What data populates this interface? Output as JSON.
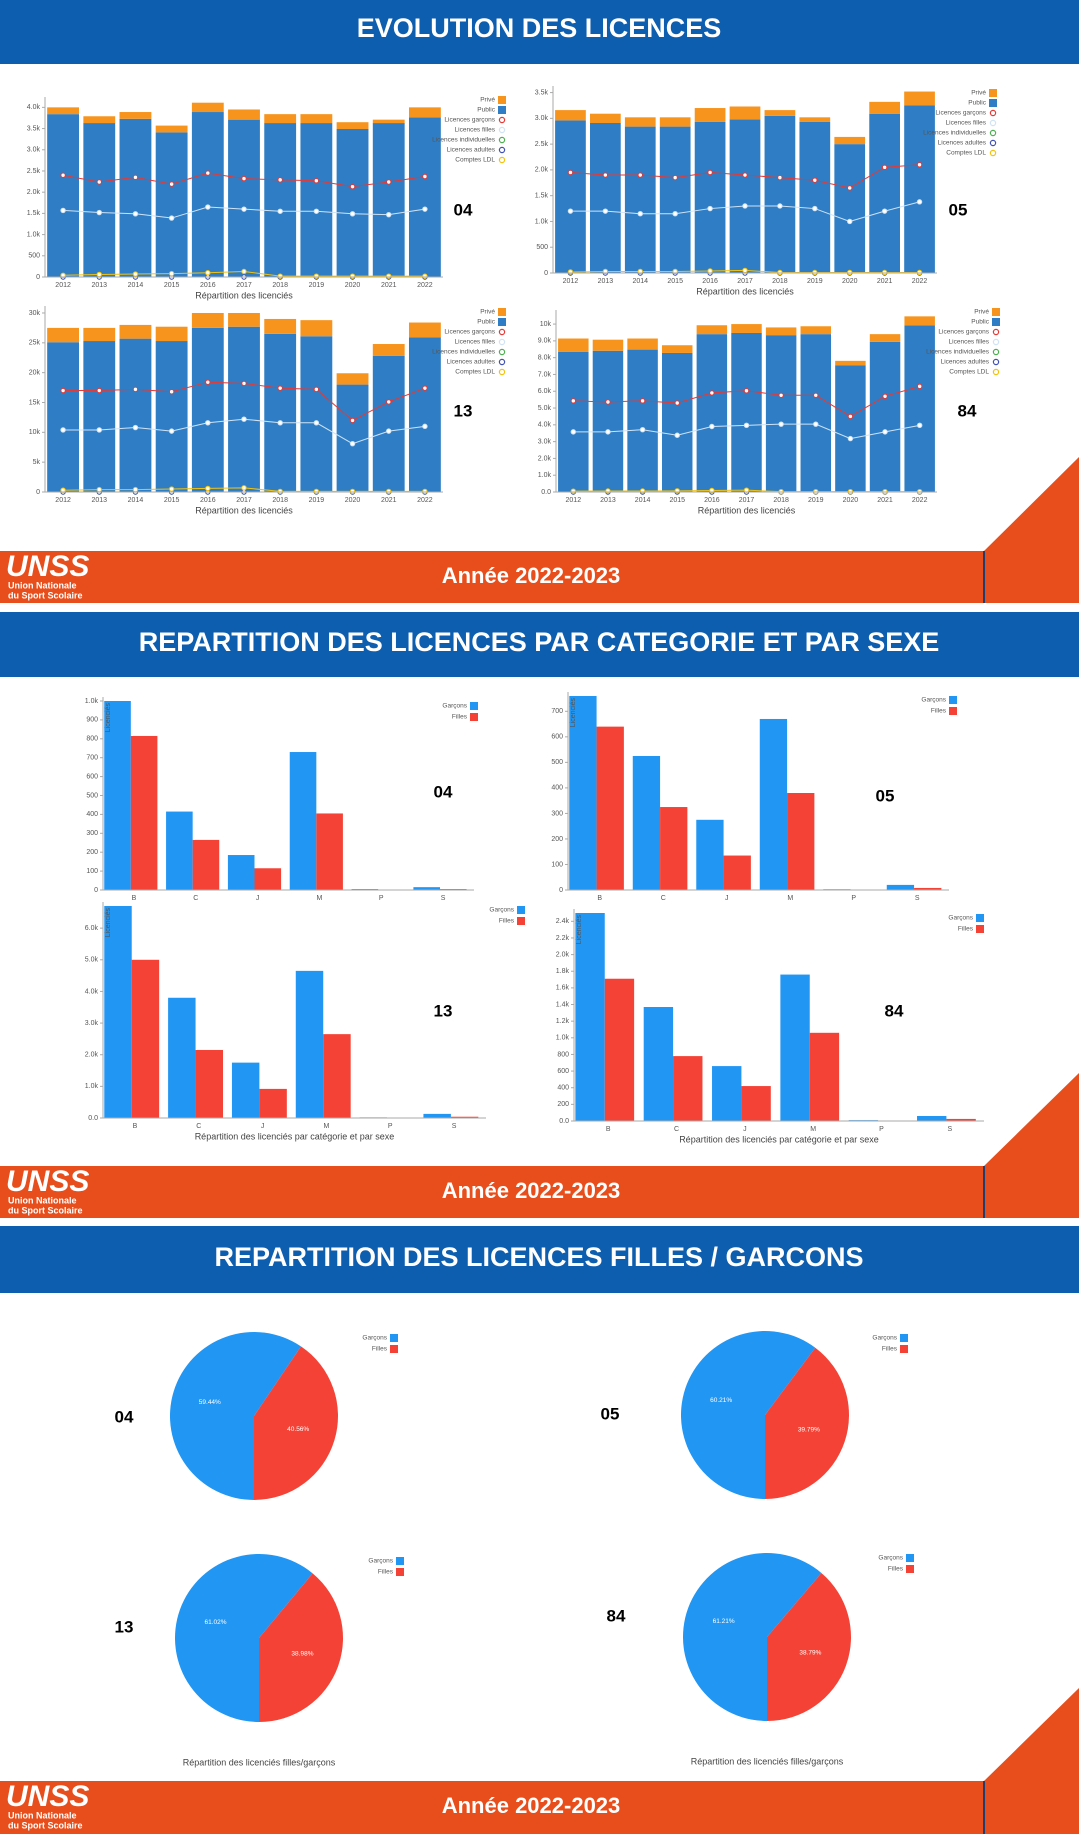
{
  "logo": {
    "name": "UNSS",
    "subtitle_lines": [
      "Union Nationale",
      "du Sport Scolaire"
    ]
  },
  "sections": [
    {
      "title": "EVOLUTION DES LICENCES",
      "footer": "Année 2022-2023"
    },
    {
      "title": "REPARTITION DES LICENCES PAR CATEGORIE ET PAR SEXE",
      "footer": "Année 2022-2023"
    },
    {
      "title": "REPARTITION DES LICENCES FILLES / GARCONS",
      "footer": "Année 2022-2023"
    }
  ],
  "chart_data": [
    {
      "type": "bar",
      "stacked": true,
      "label": "04",
      "x_label": "Répartition des licenciés",
      "categories": [
        "2012",
        "2013",
        "2014",
        "2015",
        "2016",
        "2017",
        "2018",
        "2019",
        "2020",
        "2021",
        "2022"
      ],
      "series": [
        {
          "name": "Privé",
          "color": "#f7941d",
          "values": [
            160,
            160,
            160,
            160,
            220,
            240,
            210,
            210,
            160,
            80,
            240
          ]
        },
        {
          "name": "Public",
          "color": "#2f7ec5",
          "values": [
            3840,
            3630,
            3730,
            3410,
            3890,
            3710,
            3630,
            3630,
            3490,
            3630,
            3760
          ]
        },
        {
          "name": "Licences garçons",
          "type": "line",
          "color": "#e53935",
          "values": [
            2400,
            2240,
            2350,
            2190,
            2450,
            2320,
            2290,
            2270,
            2130,
            2240,
            2370
          ]
        },
        {
          "name": "Licences filles",
          "type": "line",
          "color": "#cfe3f5",
          "values": [
            1570,
            1520,
            1490,
            1390,
            1650,
            1600,
            1550,
            1550,
            1490,
            1470,
            1600
          ]
        },
        {
          "name": "Licences individuelles",
          "type": "line",
          "color": "#4caf50",
          "values": [
            0,
            0,
            0,
            0,
            0,
            0,
            0,
            0,
            0,
            0,
            0
          ]
        },
        {
          "name": "Licences adultes",
          "type": "line",
          "color": "#3f51b5",
          "values": [
            0,
            0,
            0,
            0,
            0,
            0,
            0,
            0,
            0,
            0,
            0
          ]
        },
        {
          "name": "Comptes LDL",
          "type": "line",
          "color": "#f4c20d",
          "values": [
            40,
            60,
            70,
            80,
            100,
            130,
            20,
            20,
            20,
            20,
            20
          ]
        }
      ],
      "ylim": [
        0,
        4150
      ],
      "yticks": [
        0,
        500,
        {
          "value": 1000,
          "label": "1.0k"
        },
        {
          "value": 1500,
          "label": "1.5k"
        },
        {
          "value": 2000,
          "label": "2.0k"
        },
        {
          "value": 2500,
          "label": "2.5k"
        },
        {
          "value": 3000,
          "label": "3.0k"
        },
        {
          "value": 3500,
          "label": "3.5k"
        },
        {
          "value": 4000,
          "label": "4.0k"
        }
      ]
    },
    {
      "type": "bar",
      "stacked": true,
      "label": "05",
      "x_label": "Répartition des licenciés",
      "categories": [
        "2012",
        "2013",
        "2014",
        "2015",
        "2016",
        "2017",
        "2018",
        "2019",
        "2020",
        "2021",
        "2022"
      ],
      "series": [
        {
          "name": "Privé",
          "color": "#f7941d",
          "values": [
            200,
            180,
            180,
            180,
            270,
            250,
            110,
            90,
            140,
            230,
            270
          ]
        },
        {
          "name": "Public",
          "color": "#2f7ec5",
          "values": [
            2960,
            2910,
            2840,
            2840,
            2930,
            2980,
            3050,
            2930,
            2500,
            3090,
            3250
          ]
        },
        {
          "name": "Licences garçons",
          "type": "line",
          "color": "#e53935",
          "values": [
            1950,
            1900,
            1900,
            1850,
            1950,
            1900,
            1850,
            1800,
            1650,
            2050,
            2100
          ]
        },
        {
          "name": "Licences filles",
          "type": "line",
          "color": "#cfe3f5",
          "values": [
            1200,
            1200,
            1150,
            1150,
            1250,
            1300,
            1300,
            1250,
            1000,
            1200,
            1380
          ]
        },
        {
          "name": "Licences individuelles",
          "type": "line",
          "color": "#4caf50",
          "values": [
            0,
            0,
            0,
            0,
            0,
            0,
            0,
            0,
            0,
            0,
            0
          ]
        },
        {
          "name": "Licences adultes",
          "type": "line",
          "color": "#3f51b5",
          "values": [
            0,
            0,
            0,
            0,
            0,
            0,
            0,
            0,
            0,
            0,
            0
          ]
        },
        {
          "name": "Comptes LDL",
          "type": "line",
          "color": "#f4c20d",
          "values": [
            20,
            30,
            30,
            30,
            40,
            50,
            10,
            10,
            10,
            10,
            10
          ]
        }
      ],
      "ylim": [
        0,
        3550
      ],
      "yticks": [
        0,
        500,
        {
          "value": 1000,
          "label": "1.0k"
        },
        {
          "value": 1500,
          "label": "1.5k"
        },
        {
          "value": 2000,
          "label": "2.0k"
        },
        {
          "value": 2500,
          "label": "2.5k"
        },
        {
          "value": 3000,
          "label": "3.0k"
        },
        {
          "value": 3500,
          "label": "3.5k"
        }
      ]
    },
    {
      "type": "bar",
      "stacked": true,
      "label": "13",
      "x_label": "Répartition des licenciés",
      "categories": [
        "2012",
        "2013",
        "2014",
        "2015",
        "2016",
        "2017",
        "2018",
        "2019",
        "2020",
        "2021",
        "2022"
      ],
      "series": [
        {
          "name": "Privé",
          "color": "#f7941d",
          "values": [
            2400,
            2200,
            2300,
            2400,
            2500,
            2300,
            2500,
            2700,
            1900,
            2000,
            2500
          ]
        },
        {
          "name": "Public",
          "color": "#2f7ec5",
          "values": [
            25100,
            25300,
            25700,
            25300,
            27500,
            27700,
            26500,
            26100,
            18000,
            22800,
            25900
          ]
        },
        {
          "name": "Licences garçons",
          "type": "line",
          "color": "#e53935",
          "values": [
            17000,
            17000,
            17200,
            16800,
            18400,
            18200,
            17400,
            17200,
            12000,
            15100,
            17400
          ]
        },
        {
          "name": "Licences filles",
          "type": "line",
          "color": "#cfe3f5",
          "values": [
            10400,
            10400,
            10800,
            10200,
            11600,
            12200,
            11600,
            11600,
            8100,
            10200,
            11000
          ]
        },
        {
          "name": "Licences individuelles",
          "type": "line",
          "color": "#4caf50",
          "values": [
            0,
            0,
            0,
            0,
            0,
            0,
            0,
            0,
            0,
            0,
            0
          ]
        },
        {
          "name": "Licences adultes",
          "type": "line",
          "color": "#3f51b5",
          "values": [
            0,
            0,
            0,
            0,
            0,
            0,
            0,
            0,
            0,
            0,
            0
          ]
        },
        {
          "name": "Comptes LDL",
          "type": "line",
          "color": "#f4c20d",
          "values": [
            300,
            400,
            400,
            500,
            600,
            700,
            100,
            100,
            100,
            100,
            100
          ]
        }
      ],
      "ylim": [
        0,
        30500
      ],
      "yticks": [
        0,
        {
          "value": 5000,
          "label": "5k"
        },
        {
          "value": 10000,
          "label": "10k"
        },
        {
          "value": 15000,
          "label": "15k"
        },
        {
          "value": 20000,
          "label": "20k"
        },
        {
          "value": 25000,
          "label": "25k"
        },
        {
          "value": 30000,
          "label": "30k"
        }
      ]
    },
    {
      "type": "bar",
      "stacked": true,
      "label": "84",
      "x_label": "Répartition des licenciés",
      "categories": [
        "2012",
        "2013",
        "2014",
        "2015",
        "2016",
        "2017",
        "2018",
        "2019",
        "2020",
        "2021",
        "2022"
      ],
      "series": [
        {
          "name": "Privé",
          "color": "#f7941d",
          "values": [
            800,
            660,
            660,
            460,
            530,
            530,
            460,
            470,
            260,
            460,
            530
          ]
        },
        {
          "name": "Public",
          "color": "#2f7ec5",
          "values": [
            8340,
            8410,
            8480,
            8280,
            9400,
            9470,
            9340,
            9400,
            7550,
            8940,
            9930
          ]
        },
        {
          "name": "Licences garçons",
          "type": "line",
          "color": "#e53935",
          "values": [
            5430,
            5360,
            5430,
            5300,
            5900,
            6030,
            5760,
            5760,
            4500,
            5700,
            6290
          ]
        },
        {
          "name": "Licences filles",
          "type": "line",
          "color": "#cfe3f5",
          "values": [
            3580,
            3580,
            3710,
            3380,
            3900,
            3970,
            4040,
            4040,
            3180,
            3580,
            3970
          ]
        },
        {
          "name": "Licences individuelles",
          "type": "line",
          "color": "#4caf50",
          "values": [
            0,
            0,
            0,
            0,
            0,
            0,
            0,
            0,
            0,
            0,
            0
          ]
        },
        {
          "name": "Licences adultes",
          "type": "line",
          "color": "#3f51b5",
          "values": [
            0,
            0,
            0,
            0,
            0,
            0,
            0,
            0,
            0,
            0,
            0
          ]
        },
        {
          "name": "Comptes LDL",
          "type": "line",
          "color": "#f4c20d",
          "values": [
            50,
            60,
            60,
            70,
            90,
            110,
            20,
            20,
            20,
            20,
            20
          ]
        }
      ],
      "ylim": [
        0,
        10600
      ],
      "yticks": [
        {
          "value": 0,
          "label": "0.0"
        },
        {
          "value": 1000,
          "label": "1.0k"
        },
        {
          "value": 2000,
          "label": "2.0k"
        },
        {
          "value": 3000,
          "label": "3.0k"
        },
        {
          "value": 4000,
          "label": "4.0k"
        },
        {
          "value": 5000,
          "label": "5.0k"
        },
        {
          "value": 6000,
          "label": "6.0k"
        },
        {
          "value": 7000,
          "label": "7.0k"
        },
        {
          "value": 8000,
          "label": "8.0k"
        },
        {
          "value": 9000,
          "label": "9.0k"
        },
        {
          "value": 10000,
          "label": "10k"
        }
      ]
    },
    {
      "type": "bar",
      "label": "04",
      "y_label": "Licenciés",
      "categories": [
        "B",
        "C",
        "J",
        "M",
        "P",
        "S"
      ],
      "series": [
        {
          "name": "Garçons",
          "color": "#2196f3",
          "values": [
            1000,
            415,
            185,
            730,
            5,
            15
          ]
        },
        {
          "name": "Filles",
          "color": "#f44336",
          "values": [
            815,
            265,
            115,
            405,
            2,
            5
          ]
        }
      ],
      "ylim": [
        0,
        1000
      ],
      "yticks": [
        0,
        100,
        200,
        300,
        400,
        500,
        600,
        700,
        800,
        900,
        {
          "value": 1000,
          "label": "1.0k"
        }
      ]
    },
    {
      "type": "bar",
      "label": "05",
      "y_label": "Licenciés",
      "categories": [
        "B",
        "C",
        "J",
        "M",
        "P",
        "S"
      ],
      "series": [
        {
          "name": "Garçons",
          "color": "#2196f3",
          "values": [
            760,
            525,
            275,
            670,
            3,
            20
          ]
        },
        {
          "name": "Filles",
          "color": "#f44336",
          "values": [
            640,
            325,
            135,
            380,
            1,
            8
          ]
        }
      ],
      "ylim": [
        0,
        760
      ],
      "yticks": [
        0,
        100,
        200,
        300,
        400,
        500,
        600,
        700
      ]
    },
    {
      "type": "bar",
      "label": "13",
      "y_label": "Licenciés",
      "x_label": "Répartition des licenciés par catégorie et par sexe",
      "categories": [
        "B",
        "C",
        "J",
        "M",
        "P",
        "S"
      ],
      "series": [
        {
          "name": "Garçons",
          "color": "#2196f3",
          "values": [
            6700,
            3800,
            1750,
            4650,
            20,
            130
          ]
        },
        {
          "name": "Filles",
          "color": "#f44336",
          "values": [
            5000,
            2150,
            920,
            2650,
            15,
            40
          ]
        }
      ],
      "ylim": [
        0,
        6700
      ],
      "yticks": [
        {
          "value": 0,
          "label": "0.0"
        },
        {
          "value": 1000,
          "label": "1.0k"
        },
        {
          "value": 2000,
          "label": "2.0k"
        },
        {
          "value": 3000,
          "label": "3.0k"
        },
        {
          "value": 4000,
          "label": "4.0k"
        },
        {
          "value": 5000,
          "label": "5.0k"
        },
        {
          "value": 6000,
          "label": "6.0k"
        }
      ]
    },
    {
      "type": "bar",
      "label": "84",
      "y_label": "Licenciés",
      "x_label": "Répartition des licenciés par catégorie et par sexe",
      "categories": [
        "B",
        "C",
        "J",
        "M",
        "P",
        "S"
      ],
      "series": [
        {
          "name": "Garçons",
          "color": "#2196f3",
          "values": [
            2500,
            1370,
            660,
            1760,
            10,
            60
          ]
        },
        {
          "name": "Filles",
          "color": "#f44336",
          "values": [
            1710,
            780,
            420,
            1060,
            5,
            25
          ]
        }
      ],
      "ylim": [
        0,
        2500
      ],
      "yticks": [
        {
          "value": 0,
          "label": "0.0"
        },
        200,
        400,
        600,
        800,
        {
          "value": 1000,
          "label": "1.0k"
        },
        {
          "value": 1200,
          "label": "1.2k"
        },
        {
          "value": 1400,
          "label": "1.4k"
        },
        {
          "value": 1600,
          "label": "1.6k"
        },
        {
          "value": 1800,
          "label": "1.8k"
        },
        {
          "value": 2000,
          "label": "2.0k"
        },
        {
          "value": 2200,
          "label": "2.2k"
        },
        {
          "value": 2400,
          "label": "2.4k"
        }
      ]
    },
    {
      "type": "pie",
      "label": "04",
      "categories": [
        "Garçons",
        "Filles"
      ],
      "values": [
        59.44,
        40.56
      ],
      "value_labels": [
        "59.44%",
        "40.56%"
      ],
      "colors": [
        "#2196f3",
        "#f44336"
      ]
    },
    {
      "type": "pie",
      "label": "05",
      "categories": [
        "Garçons",
        "Filles"
      ],
      "values": [
        60.21,
        39.79
      ],
      "value_labels": [
        "60.21%",
        "39.79%"
      ],
      "colors": [
        "#2196f3",
        "#f44336"
      ]
    },
    {
      "type": "pie",
      "label": "13",
      "categories": [
        "Garçons",
        "Filles"
      ],
      "values": [
        61.02,
        38.98
      ],
      "value_labels": [
        "61.02%",
        "38.98%"
      ],
      "colors": [
        "#2196f3",
        "#f44336"
      ],
      "caption": "Répartition des licenciés filles/garçons"
    },
    {
      "type": "pie",
      "label": "84",
      "categories": [
        "Garçons",
        "Filles"
      ],
      "values": [
        61.21,
        38.79
      ],
      "value_labels": [
        "61.21%",
        "38.79%"
      ],
      "colors": [
        "#2196f3",
        "#f44336"
      ],
      "caption": "Répartition des licenciés filles/garçons"
    }
  ]
}
